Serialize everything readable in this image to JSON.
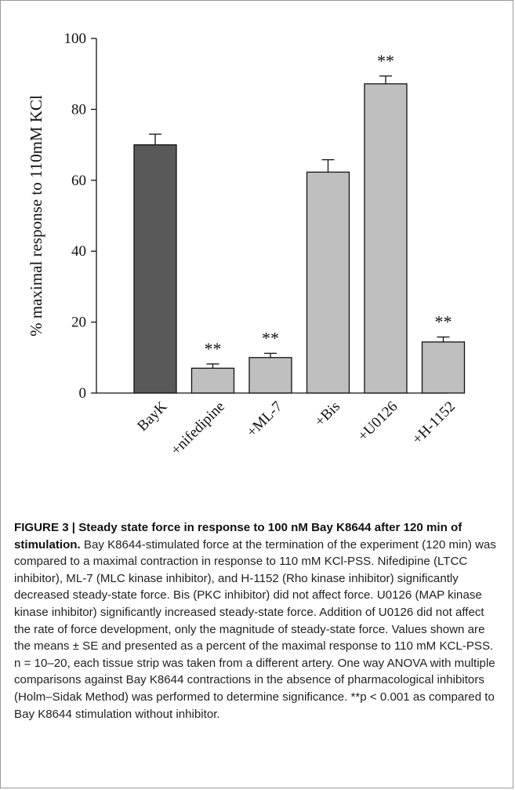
{
  "chart_data": {
    "type": "bar",
    "title": "",
    "xlabel": "",
    "ylabel": "% maximal response to 110mM KCl",
    "ylim": [
      0,
      100
    ],
    "yticks": [
      "0",
      "20",
      "40",
      "60",
      "80",
      "100"
    ],
    "grid": false,
    "categories": [
      "BayK",
      "+nifedipine",
      "+ML-7",
      "+Bis",
      "+U0126",
      "+H-1152"
    ],
    "values": [
      70,
      7,
      10,
      62.3,
      87.2,
      14.4
    ],
    "errors": [
      3,
      1.2,
      1.2,
      3.5,
      2.2,
      1.4
    ],
    "significance": [
      "",
      "**",
      "**",
      "",
      "**",
      "**"
    ],
    "colors": [
      "#595959",
      "#bfbfbf",
      "#bfbfbf",
      "#bfbfbf",
      "#bfbfbf",
      "#bfbfbf"
    ]
  },
  "caption": {
    "title": "FIGURE 3 | Steady state force in response to 100 nM Bay K8644 after 120 min of stimulation.",
    "body": " Bay K8644-stimulated force at the termination of the experiment (120 min) was compared to a maximal contraction in response to 110 mM KCl-PSS. Nifedipine (LTCC inhibitor), ML-7 (MLC kinase inhibitor), and H-1152 (Rho kinase inhibitor) significantly decreased steady-state force. Bis (PKC inhibitor) did not affect force. U0126 (MAP kinase kinase inhibitor) significantly increased steady-state force. Addition of U0126 did not affect the rate of force development, only the magnitude of steady-state force. Values shown are the means ± SE and presented as a percent of the maximal response to 110 mM KCL-PSS. n = 10–20, each tissue strip was taken from a different artery. One way ANOVA with multiple comparisons against Bay K8644 contractions in the absence of pharmacological inhibitors (Holm–Sidak Method) was performed to determine significance. **p < 0.001 as compared to Bay K8644 stimulation without inhibitor."
  }
}
